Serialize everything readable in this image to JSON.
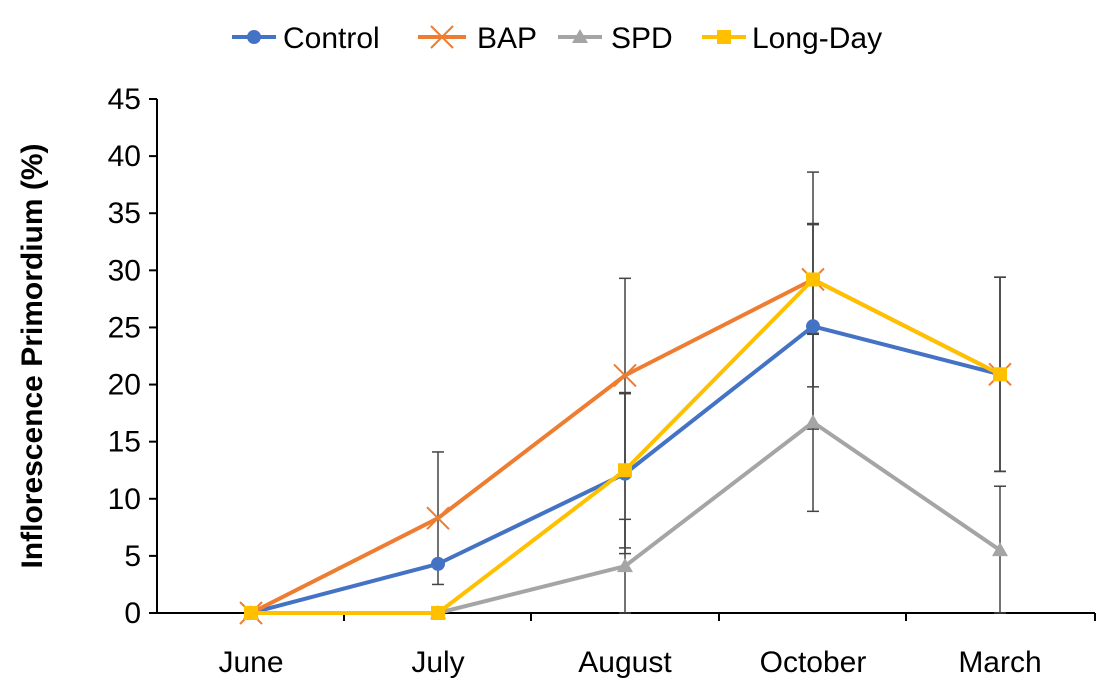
{
  "chart_data": {
    "type": "line",
    "title": "",
    "xlabel": "",
    "ylabel": "Inflorescence Primordium (%)",
    "ylim": [
      0,
      45
    ],
    "yticks": [
      0,
      5,
      10,
      15,
      20,
      25,
      30,
      35,
      40,
      45
    ],
    "categories": [
      "June",
      "July",
      "August",
      "October",
      "March"
    ],
    "legend_position": "top",
    "series": [
      {
        "name": "Control",
        "color": "#4472C4",
        "marker": "circle",
        "values": [
          0,
          4.3,
          12.2,
          25.1,
          20.9
        ],
        "error": [
          0,
          0,
          7.0,
          9.0,
          8.5
        ]
      },
      {
        "name": "BAP",
        "color": "#ED7D31",
        "marker": "x",
        "values": [
          0,
          8.3,
          20.8,
          29.2,
          20.9
        ],
        "error": [
          0,
          5.8,
          8.5,
          9.4,
          8.5
        ]
      },
      {
        "name": "SPD",
        "color": "#A5A5A5",
        "marker": "triangle",
        "values": [
          0,
          0,
          4.1,
          16.7,
          5.5
        ],
        "error": [
          0,
          0,
          4.1,
          7.8,
          5.6
        ]
      },
      {
        "name": "Long-Day",
        "color": "#FFC000",
        "marker": "square",
        "values": [
          0,
          0,
          12.5,
          29.2,
          20.9
        ],
        "error": [
          0,
          0,
          6.8,
          4.8,
          8.5
        ]
      }
    ]
  }
}
